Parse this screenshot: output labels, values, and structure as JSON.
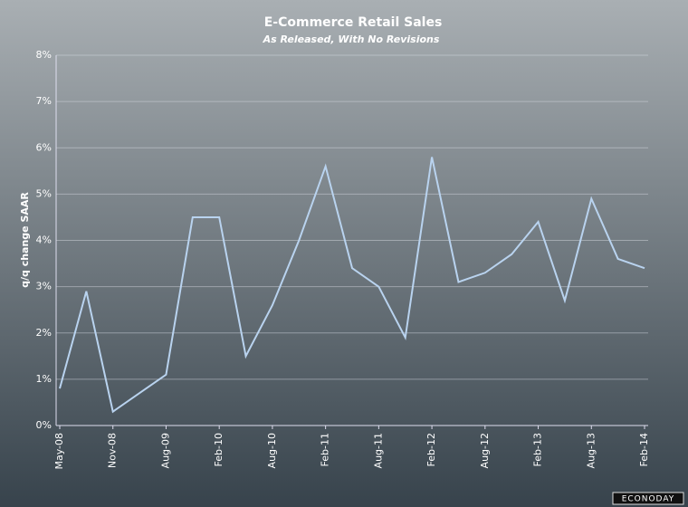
{
  "chart_data": {
    "type": "line",
    "title": "E-Commerce Retail Sales",
    "subtitle": "As Released, With No Revisions",
    "y_label": "q/q change SAAR",
    "brand": "ECONODAY",
    "categories": [
      "May-08",
      null,
      "Nov-08",
      null,
      "Aug-09",
      null,
      "Feb-10",
      null,
      "Aug-10",
      null,
      "Feb-11",
      null,
      "Aug-11",
      null,
      "Feb-12",
      null,
      "Aug-12",
      null,
      "Feb-13",
      null,
      "Aug-13",
      null,
      "Feb-14"
    ],
    "series": [
      {
        "name": "E-Commerce Retail Sales",
        "color": "#b9d3ef",
        "values": [
          0.8,
          2.9,
          0.3,
          0.7,
          1.1,
          4.5,
          4.5,
          1.5,
          2.6,
          4.0,
          5.6,
          3.4,
          3.0,
          1.9,
          5.8,
          3.1,
          3.3,
          3.7,
          4.4,
          2.7,
          4.9,
          3.6,
          3.4
        ]
      }
    ],
    "ylim": [
      0,
      8
    ],
    "yticks": [
      {
        "value": 0,
        "label": "0%"
      },
      {
        "value": 1,
        "label": "1%"
      },
      {
        "value": 2,
        "label": "2%"
      },
      {
        "value": 3,
        "label": "3%"
      },
      {
        "value": 4,
        "label": "4%"
      },
      {
        "value": 5,
        "label": "5%"
      },
      {
        "value": 6,
        "label": "6%"
      },
      {
        "value": 7,
        "label": "7%"
      },
      {
        "value": 8,
        "label": "8%"
      }
    ],
    "grid": true
  }
}
